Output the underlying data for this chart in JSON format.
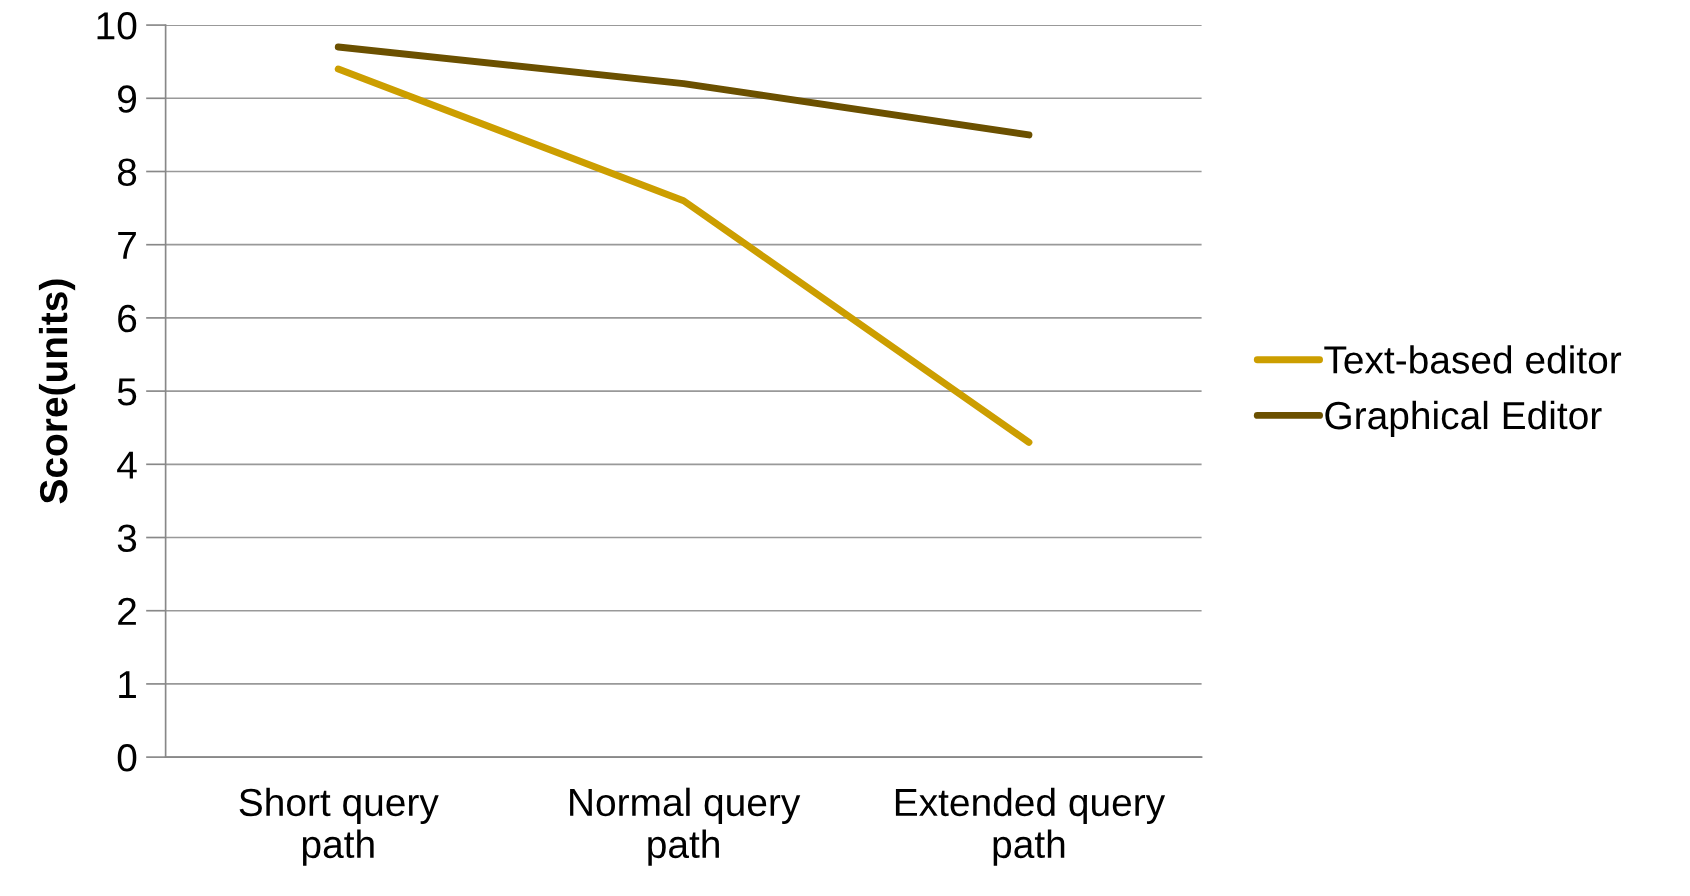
{
  "chart_data": {
    "type": "line",
    "ylabel": "Score(units)",
    "categories": [
      "Short query\npath",
      "Normal query\npath",
      "Extended query\npath"
    ],
    "series": [
      {
        "name": "Text-based editor",
        "color": "#cc9e00",
        "values": [
          9.4,
          7.6,
          4.3
        ]
      },
      {
        "name": "Graphical Editor",
        "color": "#6b5000",
        "values": [
          9.7,
          9.2,
          8.5
        ]
      }
    ],
    "ylim": [
      0,
      10
    ],
    "yticks": [
      0,
      1,
      2,
      3,
      4,
      5,
      6,
      7,
      8,
      9,
      10
    ],
    "grid": "y",
    "legend": "right",
    "marker": "none",
    "line_style": "solid"
  }
}
